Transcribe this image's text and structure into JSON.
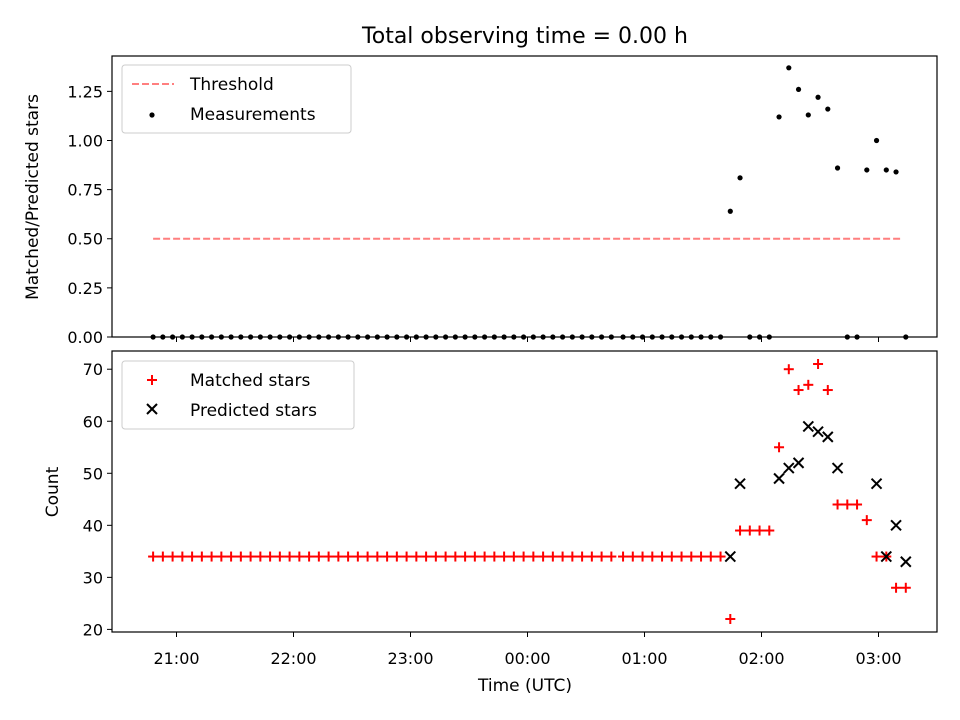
{
  "title": "Total observing time = 0.00 h",
  "colors": {
    "threshold": "#ff7f7f",
    "measurement": "#000000",
    "matched": "#ff0000",
    "predicted": "#000000"
  },
  "chart_data": [
    {
      "type": "scatter",
      "ylabel": "Matched/Predicted stars",
      "ylim": [
        0.0,
        1.43
      ],
      "yticks": [
        "0.00",
        "0.25",
        "0.50",
        "0.75",
        "1.00",
        "1.25"
      ],
      "yticks_values": [
        0,
        0.25,
        0.5,
        0.75,
        1.0,
        1.25
      ],
      "legend": {
        "placement": "upper-left",
        "entries": [
          "Threshold",
          "Measurements"
        ]
      },
      "threshold": {
        "name": "Threshold",
        "y": 0.5,
        "x_start": "20:48",
        "x_end": "03:12"
      },
      "measurements": {
        "name": "Measurements",
        "x": [
          "20:48",
          "20:53",
          "20:58",
          "21:03",
          "21:08",
          "21:13",
          "21:18",
          "21:23",
          "21:28",
          "21:33",
          "21:38",
          "21:43",
          "21:48",
          "21:53",
          "21:58",
          "22:03",
          "22:08",
          "22:13",
          "22:18",
          "22:23",
          "22:28",
          "22:33",
          "22:38",
          "22:43",
          "22:48",
          "22:53",
          "22:58",
          "23:03",
          "23:08",
          "23:13",
          "23:18",
          "23:23",
          "23:28",
          "23:33",
          "23:38",
          "23:43",
          "23:48",
          "23:53",
          "23:58",
          "00:03",
          "00:08",
          "00:13",
          "00:18",
          "00:23",
          "00:28",
          "00:33",
          "00:38",
          "00:43",
          "00:49",
          "00:54",
          "00:59",
          "01:04",
          "01:09",
          "01:14",
          "01:19",
          "01:24",
          "01:29",
          "01:34",
          "01:39",
          "01:44",
          "01:49",
          "01:54",
          "01:59",
          "02:04",
          "02:09",
          "02:14",
          "02:19",
          "02:24",
          "02:29",
          "02:34",
          "02:39",
          "02:44",
          "02:49",
          "02:54",
          "02:59",
          "03:04",
          "03:09",
          "03:14"
        ],
        "y": [
          0,
          0,
          0,
          0,
          0,
          0,
          0,
          0,
          0,
          0,
          0,
          0,
          0,
          0,
          0,
          0,
          0,
          0,
          0,
          0,
          0,
          0,
          0,
          0,
          0,
          0,
          0,
          0,
          0,
          0,
          0,
          0,
          0,
          0,
          0,
          0,
          0,
          0,
          0,
          0,
          0,
          0,
          0,
          0,
          0,
          0,
          0,
          0,
          0,
          0,
          0,
          0,
          0,
          0,
          0,
          0,
          0,
          0,
          0,
          0.64,
          0.81,
          0,
          0,
          0,
          1.12,
          1.37,
          1.26,
          1.13,
          1.22,
          1.16,
          0.86,
          0,
          0,
          0.85,
          1.0,
          0.85,
          0.84,
          0
        ]
      }
    },
    {
      "type": "scatter",
      "xlabel": "Time (UTC)",
      "ylabel": "Count",
      "ylim": [
        19.5,
        73.5
      ],
      "yticks": [
        "20",
        "30",
        "40",
        "50",
        "60",
        "70"
      ],
      "yticks_values": [
        20,
        30,
        40,
        50,
        60,
        70
      ],
      "xticks": [
        "21:00",
        "22:00",
        "23:00",
        "00:00",
        "01:00",
        "02:00",
        "03:00"
      ],
      "legend": {
        "placement": "upper-left",
        "entries": [
          "Matched stars",
          "Predicted stars"
        ]
      },
      "matched": {
        "name": "Matched stars",
        "x": [
          "20:48",
          "20:53",
          "20:58",
          "21:03",
          "21:08",
          "21:13",
          "21:18",
          "21:23",
          "21:28",
          "21:33",
          "21:38",
          "21:43",
          "21:48",
          "21:53",
          "21:58",
          "22:03",
          "22:08",
          "22:13",
          "22:18",
          "22:23",
          "22:28",
          "22:33",
          "22:38",
          "22:43",
          "22:48",
          "22:53",
          "22:58",
          "23:03",
          "23:08",
          "23:13",
          "23:18",
          "23:23",
          "23:28",
          "23:33",
          "23:38",
          "23:43",
          "23:48",
          "23:53",
          "23:58",
          "00:03",
          "00:08",
          "00:13",
          "00:18",
          "00:23",
          "00:28",
          "00:33",
          "00:38",
          "00:43",
          "00:49",
          "00:54",
          "00:59",
          "01:04",
          "01:09",
          "01:14",
          "01:19",
          "01:24",
          "01:29",
          "01:34",
          "01:39",
          "01:44",
          "01:49",
          "01:54",
          "01:59",
          "02:04",
          "02:09",
          "02:14",
          "02:19",
          "02:24",
          "02:29",
          "02:34",
          "02:39",
          "02:44",
          "02:49",
          "02:54",
          "02:59",
          "03:04",
          "03:09",
          "03:14"
        ],
        "y": [
          34,
          34,
          34,
          34,
          34,
          34,
          34,
          34,
          34,
          34,
          34,
          34,
          34,
          34,
          34,
          34,
          34,
          34,
          34,
          34,
          34,
          34,
          34,
          34,
          34,
          34,
          34,
          34,
          34,
          34,
          34,
          34,
          34,
          34,
          34,
          34,
          34,
          34,
          34,
          34,
          34,
          34,
          34,
          34,
          34,
          34,
          34,
          34,
          34,
          34,
          34,
          34,
          34,
          34,
          34,
          34,
          34,
          34,
          34,
          22,
          39,
          39,
          39,
          39,
          55,
          70,
          66,
          67,
          71,
          66,
          44,
          44,
          44,
          41,
          34,
          34,
          28,
          28
        ]
      },
      "predicted": {
        "name": "Predicted stars",
        "x": [
          "01:44",
          "01:49",
          "02:09",
          "02:14",
          "02:19",
          "02:24",
          "02:29",
          "02:34",
          "02:39",
          "02:59",
          "03:04",
          "03:09",
          "03:14"
        ],
        "y": [
          34,
          48,
          49,
          51,
          52,
          59,
          58,
          57,
          51,
          48,
          34,
          40,
          33
        ]
      }
    }
  ]
}
